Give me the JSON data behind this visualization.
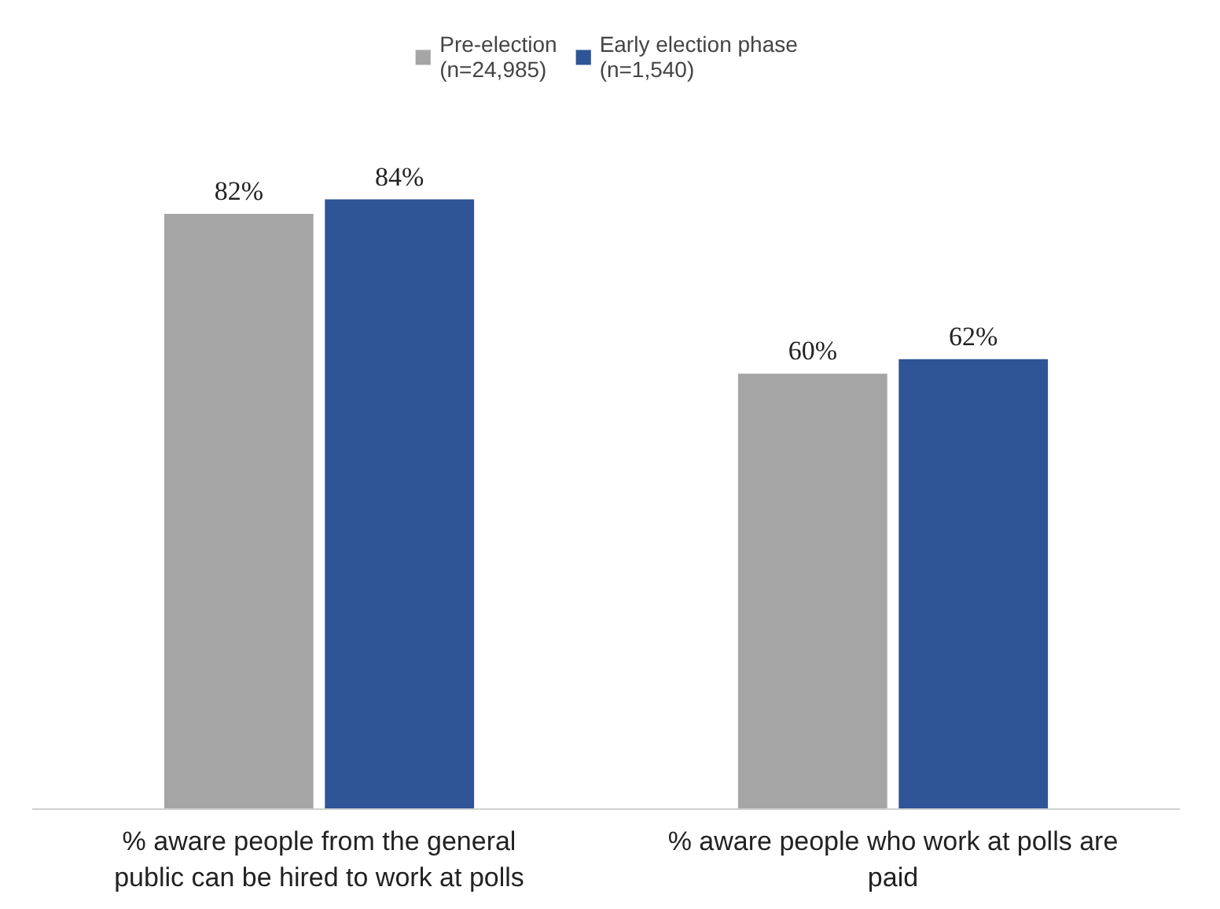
{
  "chart_data": {
    "type": "bar",
    "categories": [
      "% aware people from the general public can be hired to work at polls",
      "% aware people who work at polls are paid"
    ],
    "series": [
      {
        "name": "Pre-election (n=24,985)",
        "color": "#a5a5a5",
        "values": [
          82,
          60
        ],
        "value_labels": [
          "82%",
          "60%"
        ]
      },
      {
        "name": "Early election phase (n=1,540)",
        "color": "#2f5597",
        "values": [
          84,
          62
        ],
        "value_labels": [
          "84%",
          "62%"
        ]
      }
    ],
    "legend": "top"
  }
}
